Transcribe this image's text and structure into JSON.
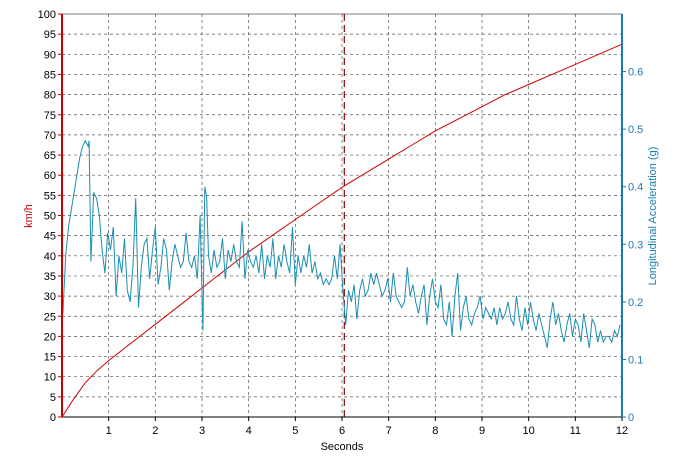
{
  "chart_data": {
    "type": "line",
    "title": "",
    "xlabel": "Seconds",
    "ylabel_left": "km/h",
    "ylabel_right": "Longitudinal Acceleration (g)",
    "xlim": [
      0,
      12
    ],
    "ylim_left": [
      0,
      100
    ],
    "ylim_right": [
      0,
      0.7
    ],
    "x_ticks": [
      "1",
      "2",
      "3",
      "4",
      "5",
      "6",
      "7",
      "8",
      "9",
      "10",
      "11",
      "12"
    ],
    "y_left_ticks": [
      "0",
      "5",
      "10",
      "15",
      "20",
      "25",
      "30",
      "35",
      "40",
      "45",
      "50",
      "55",
      "60",
      "65",
      "70",
      "75",
      "80",
      "85",
      "90",
      "95",
      "100"
    ],
    "y_right_ticks": [
      "0",
      "0.1",
      "0.2",
      "0.3",
      "0.4",
      "0.5",
      "0.6"
    ],
    "grid": true,
    "marker_x": 6.05,
    "colors": {
      "speed": "#cc0000",
      "accel": "#1a8fb0",
      "left_axis": "#cc0000",
      "right_axis": "#1f77b4",
      "grid": "#555555",
      "marker": "#8b1a1a"
    },
    "series": [
      {
        "axis": "left",
        "points": [
          [
            0,
            0
          ],
          [
            0.25,
            4.5
          ],
          [
            0.5,
            8.5
          ],
          [
            0.75,
            11.5
          ],
          [
            1,
            14
          ],
          [
            1.5,
            18.5
          ],
          [
            2,
            23
          ],
          [
            2.5,
            27.5
          ],
          [
            3,
            32
          ],
          [
            3.5,
            36.5
          ],
          [
            4,
            41
          ],
          [
            4.5,
            45
          ],
          [
            5,
            49
          ],
          [
            5.5,
            53
          ],
          [
            6,
            57
          ],
          [
            6.5,
            60.5
          ],
          [
            7,
            64
          ],
          [
            7.5,
            67.5
          ],
          [
            8,
            71
          ],
          [
            8.5,
            74
          ],
          [
            9,
            77
          ],
          [
            9.5,
            80
          ],
          [
            10,
            82.5
          ],
          [
            10.5,
            85
          ],
          [
            11,
            87.5
          ],
          [
            11.5,
            90
          ],
          [
            12,
            92.5
          ]
        ]
      },
      {
        "axis": "right",
        "points": [
          [
            0.02,
            0.18
          ],
          [
            0.08,
            0.28
          ],
          [
            0.14,
            0.33
          ],
          [
            0.2,
            0.36
          ],
          [
            0.26,
            0.39
          ],
          [
            0.32,
            0.42
          ],
          [
            0.38,
            0.45
          ],
          [
            0.44,
            0.47
          ],
          [
            0.5,
            0.48
          ],
          [
            0.56,
            0.47
          ],
          [
            0.58,
            0.48
          ],
          [
            0.62,
            0.27
          ],
          [
            0.68,
            0.39
          ],
          [
            0.74,
            0.38
          ],
          [
            0.8,
            0.35
          ],
          [
            0.86,
            0.29
          ],
          [
            0.92,
            0.25
          ],
          [
            0.98,
            0.32
          ],
          [
            1.04,
            0.29
          ],
          [
            1.1,
            0.33
          ],
          [
            1.16,
            0.21
          ],
          [
            1.22,
            0.28
          ],
          [
            1.28,
            0.25
          ],
          [
            1.34,
            0.31
          ],
          [
            1.4,
            0.22
          ],
          [
            1.46,
            0.2
          ],
          [
            1.52,
            0.26
          ],
          [
            1.58,
            0.38
          ],
          [
            1.64,
            0.19
          ],
          [
            1.7,
            0.26
          ],
          [
            1.76,
            0.3
          ],
          [
            1.82,
            0.31
          ],
          [
            1.88,
            0.24
          ],
          [
            1.94,
            0.29
          ],
          [
            2,
            0.33
          ],
          [
            2.06,
            0.23
          ],
          [
            2.12,
            0.26
          ],
          [
            2.18,
            0.31
          ],
          [
            2.24,
            0.29
          ],
          [
            2.3,
            0.22
          ],
          [
            2.36,
            0.27
          ],
          [
            2.42,
            0.3
          ],
          [
            2.48,
            0.28
          ],
          [
            2.54,
            0.26
          ],
          [
            2.6,
            0.27
          ],
          [
            2.66,
            0.32
          ],
          [
            2.72,
            0.27
          ],
          [
            2.78,
            0.26
          ],
          [
            2.84,
            0.28
          ],
          [
            2.9,
            0.24
          ],
          [
            2.96,
            0.35
          ],
          [
            3.02,
            0.15
          ],
          [
            3.06,
            0.4
          ],
          [
            3.1,
            0.38
          ],
          [
            3.14,
            0.28
          ],
          [
            3.2,
            0.25
          ],
          [
            3.26,
            0.29
          ],
          [
            3.32,
            0.26
          ],
          [
            3.38,
            0.27
          ],
          [
            3.44,
            0.31
          ],
          [
            3.5,
            0.24
          ],
          [
            3.56,
            0.29
          ],
          [
            3.62,
            0.27
          ],
          [
            3.68,
            0.3
          ],
          [
            3.74,
            0.27
          ],
          [
            3.8,
            0.26
          ],
          [
            3.86,
            0.34
          ],
          [
            3.92,
            0.24
          ],
          [
            3.98,
            0.29
          ],
          [
            4.04,
            0.27
          ],
          [
            4.1,
            0.26
          ],
          [
            4.16,
            0.28
          ],
          [
            4.22,
            0.25
          ],
          [
            4.28,
            0.3
          ],
          [
            4.34,
            0.24
          ],
          [
            4.4,
            0.28
          ],
          [
            4.46,
            0.26
          ],
          [
            4.52,
            0.31
          ],
          [
            4.58,
            0.24
          ],
          [
            4.64,
            0.28
          ],
          [
            4.7,
            0.26
          ],
          [
            4.76,
            0.3
          ],
          [
            4.82,
            0.27
          ],
          [
            4.88,
            0.25
          ],
          [
            4.94,
            0.33
          ],
          [
            5,
            0.23
          ],
          [
            5.06,
            0.28
          ],
          [
            5.12,
            0.25
          ],
          [
            5.18,
            0.28
          ],
          [
            5.24,
            0.26
          ],
          [
            5.3,
            0.3
          ],
          [
            5.36,
            0.25
          ],
          [
            5.42,
            0.27
          ],
          [
            5.48,
            0.24
          ],
          [
            5.54,
            0.25
          ],
          [
            5.6,
            0.23
          ],
          [
            5.66,
            0.24
          ],
          [
            5.72,
            0.23
          ],
          [
            5.78,
            0.24
          ],
          [
            5.84,
            0.28
          ],
          [
            5.9,
            0.24
          ],
          [
            5.96,
            0.3
          ],
          [
            6.02,
            0.22
          ],
          [
            6.08,
            0.16
          ],
          [
            6.14,
            0.22
          ],
          [
            6.2,
            0.2
          ],
          [
            6.26,
            0.23
          ],
          [
            6.32,
            0.17
          ],
          [
            6.38,
            0.22
          ],
          [
            6.44,
            0.24
          ],
          [
            6.5,
            0.21
          ],
          [
            6.56,
            0.22
          ],
          [
            6.62,
            0.25
          ],
          [
            6.68,
            0.23
          ],
          [
            6.74,
            0.25
          ],
          [
            6.8,
            0.23
          ],
          [
            6.86,
            0.21
          ],
          [
            6.92,
            0.22
          ],
          [
            6.98,
            0.24
          ],
          [
            7.04,
            0.2
          ],
          [
            7.1,
            0.25
          ],
          [
            7.16,
            0.21
          ],
          [
            7.22,
            0.2
          ],
          [
            7.28,
            0.19
          ],
          [
            7.34,
            0.2
          ],
          [
            7.4,
            0.26
          ],
          [
            7.46,
            0.21
          ],
          [
            7.52,
            0.23
          ],
          [
            7.58,
            0.2
          ],
          [
            7.64,
            0.18
          ],
          [
            7.7,
            0.21
          ],
          [
            7.76,
            0.23
          ],
          [
            7.82,
            0.16
          ],
          [
            7.88,
            0.21
          ],
          [
            7.94,
            0.24
          ],
          [
            8,
            0.2
          ],
          [
            8.06,
            0.19
          ],
          [
            8.12,
            0.23
          ],
          [
            8.18,
            0.17
          ],
          [
            8.24,
            0.16
          ],
          [
            8.3,
            0.2
          ],
          [
            8.36,
            0.14
          ],
          [
            8.42,
            0.21
          ],
          [
            8.48,
            0.25
          ],
          [
            8.54,
            0.15
          ],
          [
            8.6,
            0.19
          ],
          [
            8.66,
            0.21
          ],
          [
            8.72,
            0.17
          ],
          [
            8.78,
            0.16
          ],
          [
            8.84,
            0.18
          ],
          [
            8.9,
            0.19
          ],
          [
            8.96,
            0.21
          ],
          [
            9.02,
            0.17
          ],
          [
            9.08,
            0.19
          ],
          [
            9.14,
            0.18
          ],
          [
            9.2,
            0.17
          ],
          [
            9.26,
            0.19
          ],
          [
            9.32,
            0.16
          ],
          [
            9.38,
            0.19
          ],
          [
            9.44,
            0.17
          ],
          [
            9.5,
            0.18
          ],
          [
            9.56,
            0.2
          ],
          [
            9.62,
            0.17
          ],
          [
            9.68,
            0.16
          ],
          [
            9.74,
            0.21
          ],
          [
            9.8,
            0.17
          ],
          [
            9.86,
            0.15
          ],
          [
            9.92,
            0.19
          ],
          [
            9.98,
            0.16
          ],
          [
            10.04,
            0.2
          ],
          [
            10.1,
            0.17
          ],
          [
            10.16,
            0.15
          ],
          [
            10.22,
            0.18
          ],
          [
            10.28,
            0.16
          ],
          [
            10.34,
            0.14
          ],
          [
            10.4,
            0.12
          ],
          [
            10.46,
            0.17
          ],
          [
            10.52,
            0.2
          ],
          [
            10.58,
            0.16
          ],
          [
            10.64,
            0.18
          ],
          [
            10.7,
            0.15
          ],
          [
            10.76,
            0.13
          ],
          [
            10.82,
            0.16
          ],
          [
            10.88,
            0.18
          ],
          [
            10.94,
            0.14
          ],
          [
            11,
            0.17
          ],
          [
            11.06,
            0.16
          ],
          [
            11.12,
            0.13
          ],
          [
            11.18,
            0.18
          ],
          [
            11.24,
            0.15
          ],
          [
            11.3,
            0.12
          ],
          [
            11.36,
            0.17
          ],
          [
            11.42,
            0.16
          ],
          [
            11.48,
            0.13
          ],
          [
            11.54,
            0.15
          ],
          [
            11.6,
            0.13
          ],
          [
            11.66,
            0.14
          ],
          [
            11.72,
            0.14
          ],
          [
            11.78,
            0.13
          ],
          [
            11.84,
            0.15
          ],
          [
            11.9,
            0.14
          ],
          [
            11.96,
            0.16
          ]
        ]
      }
    ]
  }
}
